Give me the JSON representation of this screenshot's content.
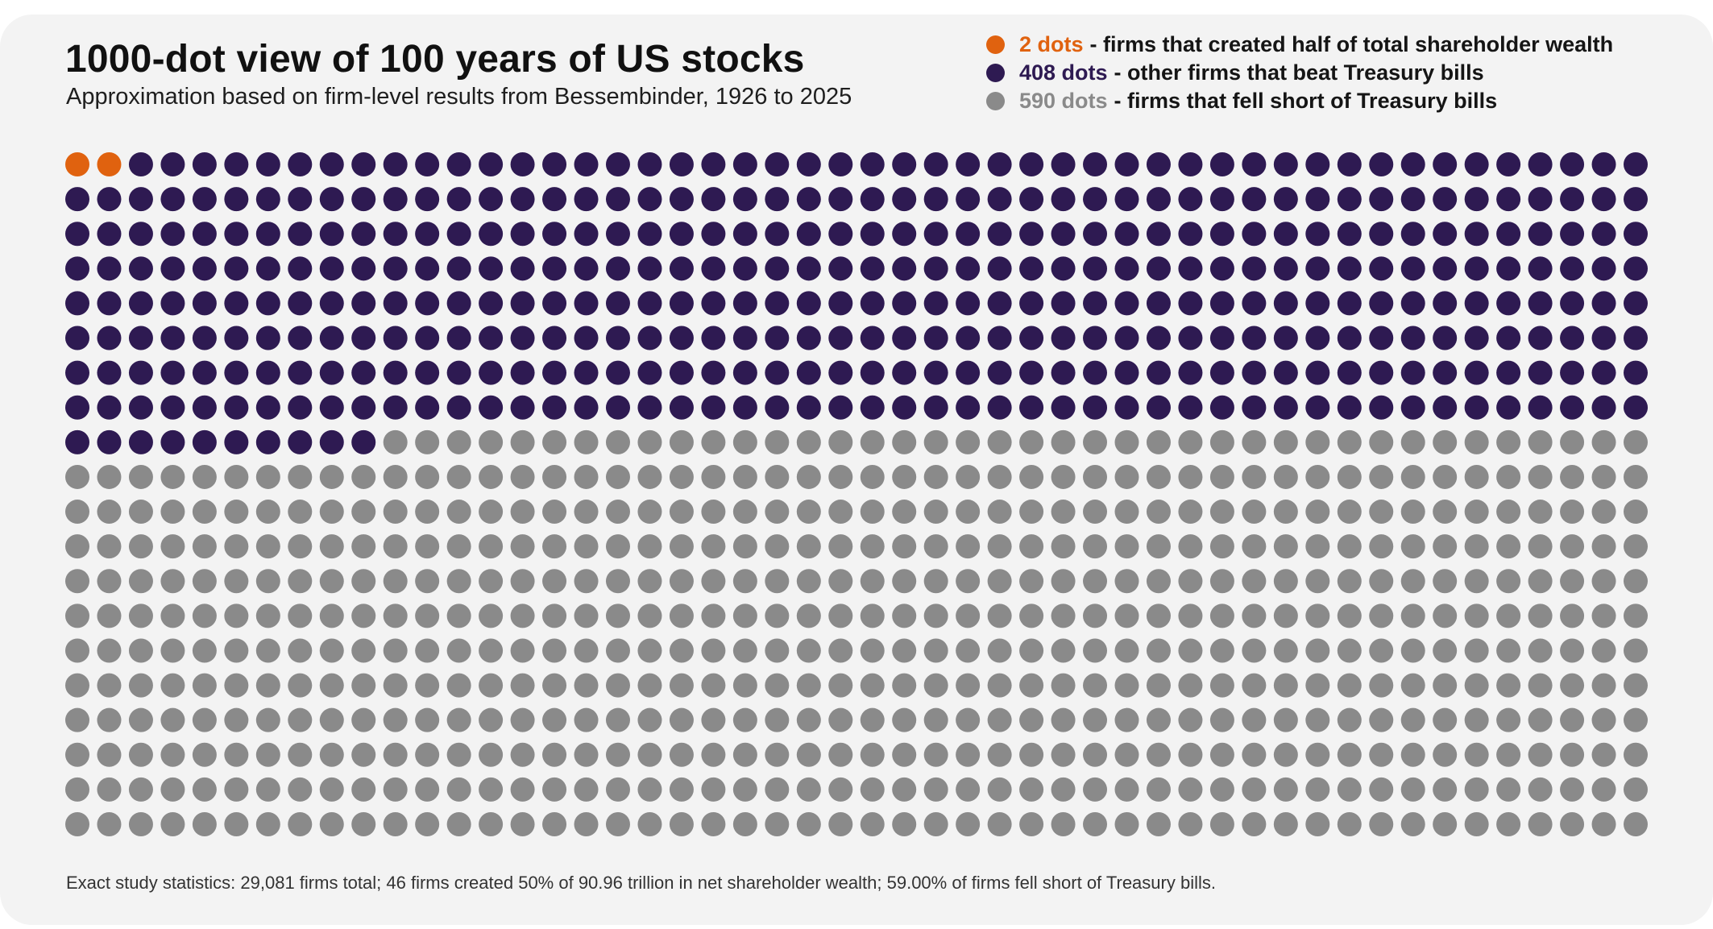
{
  "chart_data": {
    "type": "waffle",
    "title": "1000-dot view of 100 years of US stocks",
    "subtitle": "Approximation based on firm-level results from Bessembinder, 1926 to 2025",
    "grid": {
      "columns": 50,
      "rows": 20
    },
    "total_dots": 1000,
    "categories": [
      {
        "count_label": "2 dots",
        "description": "- firms that created half of total shareholder wealth",
        "value": 2,
        "color": "#e0620f"
      },
      {
        "count_label": "408 dots",
        "description": "- other firms that beat Treasury bills",
        "value": 408,
        "color": "#2e1a52"
      },
      {
        "count_label": "590 dots",
        "description": "- firms that fell short of Treasury bills",
        "value": 590,
        "color": "#8a8a8a"
      }
    ],
    "legend_placement": "top-right",
    "footnote": "Exact study statistics: 29,081 firms total; 46 firms created 50% of 90.96 trillion in net shareholder wealth; 59.00% of firms fell short of Treasury bills."
  }
}
